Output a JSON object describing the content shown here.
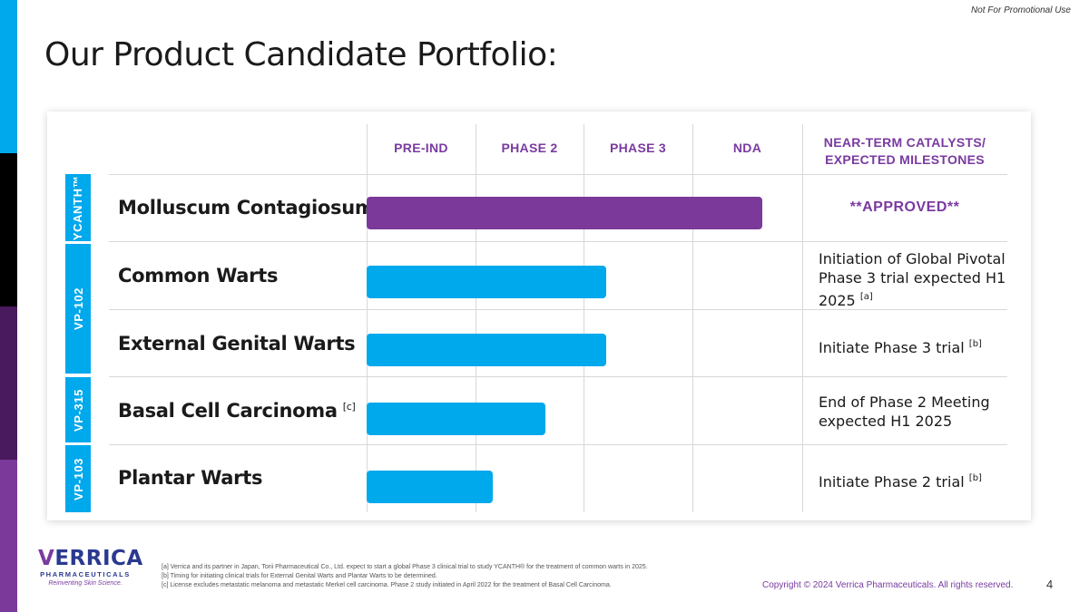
{
  "header": {
    "note": "Not For Promotional Use",
    "title": "Our Product Candidate Portfolio:"
  },
  "columns": {
    "phase1": "PRE-IND",
    "phase2": "PHASE 2",
    "phase3": "PHASE 3",
    "phase4": "NDA",
    "catalysts_line1": "NEAR-TERM CATALYSTS/",
    "catalysts_line2": "EXPECTED MILESTONES"
  },
  "products": [
    {
      "label": "YCANTH™"
    },
    {
      "label": "VP-102"
    },
    {
      "label": "VP-315"
    },
    {
      "label": "VP-103"
    }
  ],
  "rows": [
    {
      "name": "Molluscum Contagiosum",
      "note": "",
      "milestone": "**APPROVED**",
      "progress": 1.0,
      "color": "#7b3a9a"
    },
    {
      "name": "Common Warts",
      "note": "",
      "milestone_line1": "Initiation of Global Pivotal",
      "milestone_line2": "Phase 3 trial expected H1",
      "milestone_line3": "2025",
      "milestone_note": "[a]",
      "progress": 0.55,
      "color": "#00a8ec"
    },
    {
      "name": "External Genital Warts",
      "note": "",
      "milestone_text": "Initiate Phase 3 trial",
      "milestone_note": "[b]",
      "progress": 0.55,
      "color": "#00a8ec"
    },
    {
      "name": "Basal Cell Carcinoma",
      "note": "[c]",
      "milestone_line1": "End of Phase 2 Meeting",
      "milestone_line2": "expected H1 2025",
      "progress": 0.41,
      "color": "#00a8ec"
    },
    {
      "name": "Plantar Warts",
      "note": "",
      "milestone_text": "Initiate Phase 2 trial",
      "milestone_note": "[b]",
      "progress": 0.29,
      "color": "#00a8ec"
    }
  ],
  "logo": {
    "word_v": "V",
    "word_rest": "ERRICA",
    "sub": "PHARMACEUTICALS",
    "tagline": "Reinventing Skin Science."
  },
  "footnotes": {
    "a": "[a]  Verrica and its partner in Japan, Torii Pharmaceutical Co., Ltd. expect to start a global Phase 3 clinical trial to study YCANTH® for the treatment of common warts in 2025.",
    "b": "[b]  Timing for initiating clinical trials for External Genital Warts and Plantar Warts to be determined.",
    "c": "[c]   License excludes metastatic melanoma and metastatic Merkel cell carcinoma. Phase 2 study initiated in April 2022 for the treatment of Basal Cell Carcinoma."
  },
  "footer": {
    "copyright": "Copyright © 2024 Verrica Pharmaceuticals. All rights reserved.",
    "page_number": "4"
  },
  "colors": {
    "accent_blue": "#00a8ec",
    "accent_purple": "#7b3a9a",
    "header_purple": "#7a3aa0"
  }
}
